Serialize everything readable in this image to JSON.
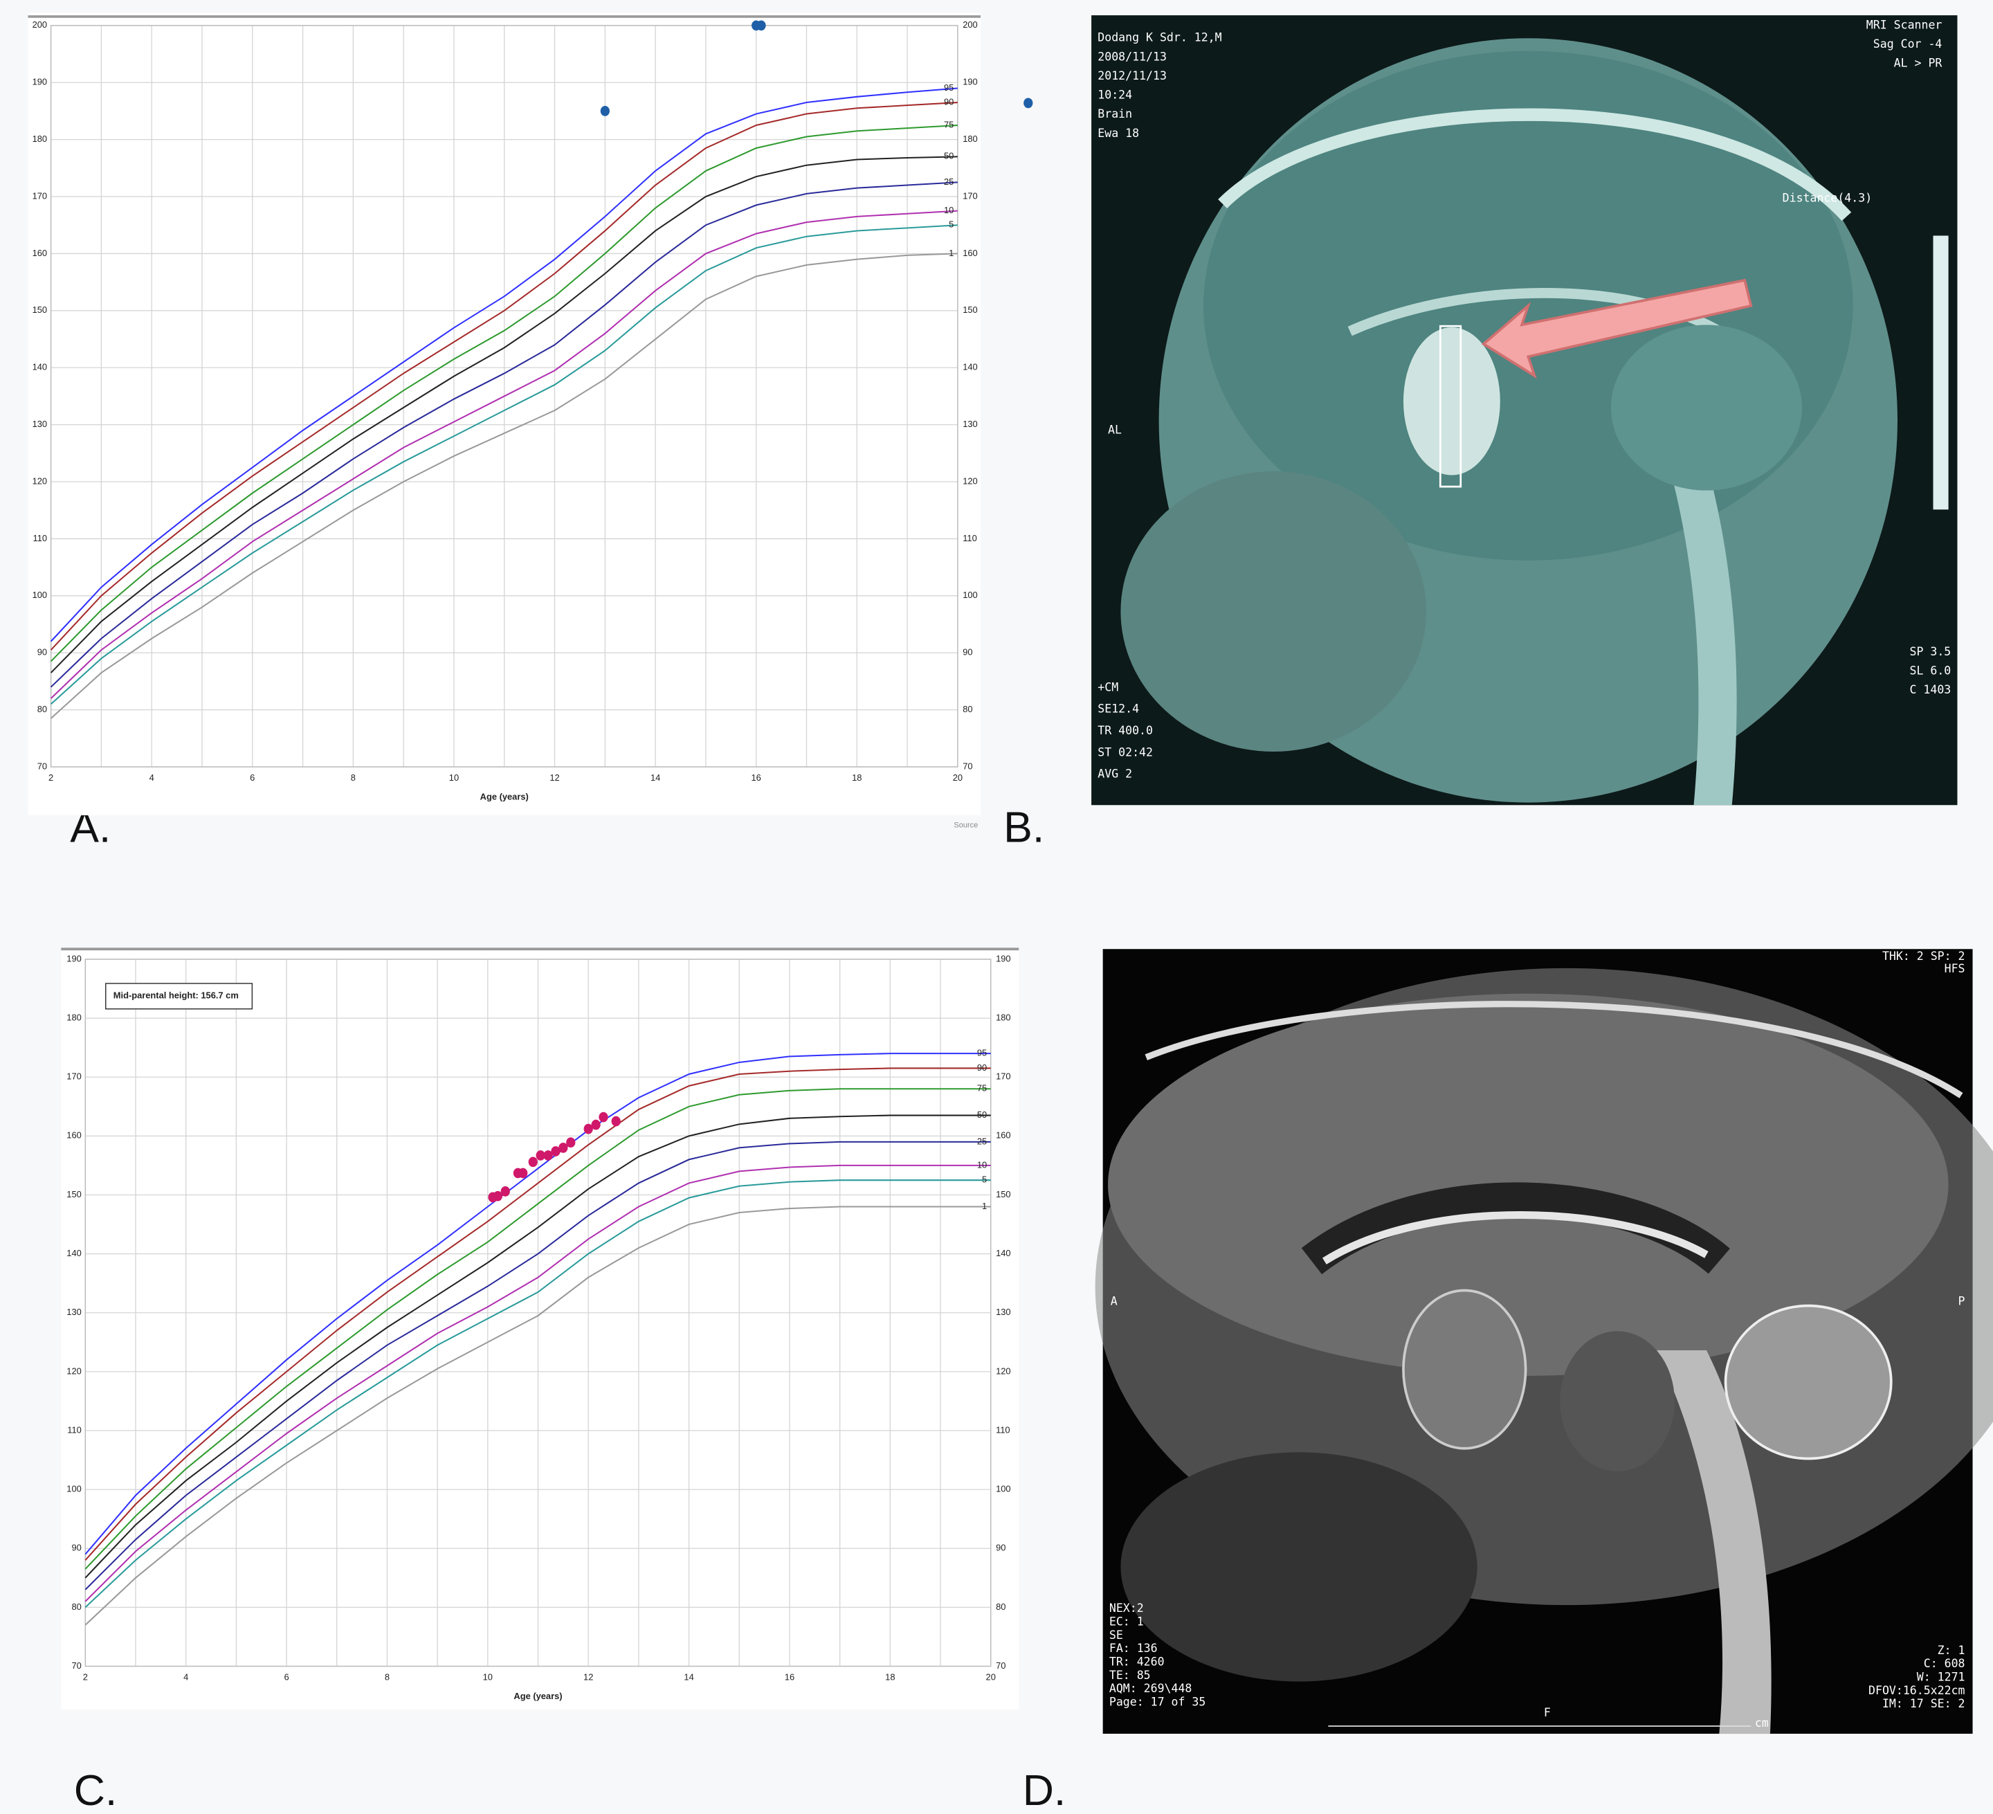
{
  "chart_data": [
    {
      "type": "line",
      "x_label": "Age (years)",
      "source": "Source",
      "xlim": [
        2,
        20
      ],
      "xticks": [
        2,
        4,
        6,
        8,
        10,
        12,
        14,
        16,
        18,
        20
      ],
      "x_minor_ticks": [
        3,
        5,
        7,
        9,
        11,
        13,
        15,
        17,
        19
      ],
      "ylim": [
        70,
        200
      ],
      "yticks": [
        70,
        80,
        90,
        100,
        110,
        120,
        130,
        140,
        150,
        160,
        170,
        180,
        190,
        200
      ],
      "grid": true,
      "x": [
        2,
        3,
        4,
        5,
        6,
        7,
        8,
        9,
        10,
        11,
        12,
        13,
        14,
        15,
        16,
        17,
        18,
        19,
        20
      ],
      "series": [
        {
          "name": "95",
          "color": "#3030ff",
          "values": [
            92,
            101.5,
            109,
            116,
            122.5,
            129,
            135,
            141,
            147,
            152.5,
            159,
            166.5,
            174.5,
            181,
            184.5,
            186.5,
            187.5,
            188.3,
            189
          ]
        },
        {
          "name": "90",
          "color": "#a52a2a",
          "values": [
            90.5,
            100,
            107.5,
            114.5,
            121,
            127,
            133,
            139,
            144.5,
            150,
            156.5,
            164,
            172,
            178.5,
            182.5,
            184.5,
            185.5,
            186,
            186.5
          ]
        },
        {
          "name": "75",
          "color": "#2e9a2e",
          "values": [
            88.5,
            97.5,
            105,
            111.5,
            118,
            124,
            130,
            136,
            141.5,
            146.5,
            152.5,
            160,
            168,
            174.5,
            178.5,
            180.5,
            181.5,
            182,
            182.5
          ]
        },
        {
          "name": "50",
          "color": "#222222",
          "values": [
            86.5,
            95.5,
            102.5,
            109,
            115.5,
            121.5,
            127.5,
            133,
            138.5,
            143.5,
            149.5,
            156.5,
            164,
            170,
            173.5,
            175.5,
            176.5,
            176.8,
            177
          ]
        },
        {
          "name": "25",
          "color": "#2a2a9a",
          "values": [
            84,
            92.5,
            99.5,
            106,
            112.5,
            118,
            124,
            129.5,
            134.5,
            139,
            144,
            151,
            158.5,
            165,
            168.5,
            170.5,
            171.5,
            172,
            172.5
          ]
        },
        {
          "name": "10",
          "color": "#b030b0",
          "values": [
            82,
            90.5,
            97,
            103,
            109.5,
            115,
            120.5,
            126,
            130.5,
            135,
            139.5,
            146,
            153.5,
            160,
            163.5,
            165.5,
            166.5,
            167,
            167.5
          ]
        },
        {
          "name": "5",
          "color": "#2a9a9a",
          "values": [
            81,
            89,
            95.5,
            101.5,
            107.5,
            113,
            118.5,
            123.5,
            128,
            132.5,
            137,
            143,
            150.5,
            157,
            161,
            163,
            164,
            164.5,
            165
          ]
        },
        {
          "name": "1",
          "color": "#999999",
          "values": [
            78.5,
            86.5,
            92.5,
            98,
            104,
            109.5,
            115,
            120,
            124.5,
            128.5,
            132.5,
            138,
            145,
            152,
            156,
            158,
            159,
            159.7,
            160
          ]
        }
      ],
      "markers": {
        "color": "#1f5fa8",
        "x": [
          13,
          16,
          16.1,
          21.4
        ],
        "values": [
          185,
          200,
          200,
          186.4
        ]
      }
    },
    {
      "type": "line",
      "x_label": "Age (years)",
      "annotation": "Mid-parental height: 156.7 cm",
      "xlim": [
        2,
        20
      ],
      "xticks": [
        2,
        4,
        6,
        8,
        10,
        12,
        14,
        16,
        18,
        20
      ],
      "x_minor_ticks": [
        3,
        5,
        7,
        9,
        11,
        13,
        15,
        17,
        19
      ],
      "ylim": [
        70,
        190
      ],
      "yticks": [
        70,
        80,
        90,
        100,
        110,
        120,
        130,
        140,
        150,
        160,
        170,
        180,
        190
      ],
      "grid": true,
      "x": [
        2,
        3,
        4,
        5,
        6,
        7,
        8,
        9,
        10,
        11,
        12,
        13,
        14,
        15,
        16,
        17,
        18,
        19,
        20
      ],
      "series": [
        {
          "name": "95",
          "color": "#3030ff",
          "values": [
            89,
            99,
            107,
            114.5,
            122,
            129,
            135.5,
            141.5,
            148,
            154.5,
            161,
            166.5,
            170.5,
            172.5,
            173.5,
            173.8,
            174,
            174,
            174
          ]
        },
        {
          "name": "90",
          "color": "#a52a2a",
          "values": [
            88,
            97.5,
            105.5,
            113,
            120,
            127,
            133.5,
            139.5,
            145.5,
            152,
            158.5,
            164.5,
            168.5,
            170.5,
            171,
            171.3,
            171.5,
            171.5,
            171.5
          ]
        },
        {
          "name": "75",
          "color": "#2e9a2e",
          "values": [
            86.5,
            95.5,
            103.5,
            110.5,
            117.5,
            124,
            130.5,
            136.5,
            142,
            148.5,
            155,
            161,
            165,
            167,
            167.7,
            168,
            168,
            168,
            168
          ]
        },
        {
          "name": "50",
          "color": "#222222",
          "values": [
            85,
            94,
            101.5,
            108,
            115,
            121.5,
            127.5,
            133,
            138.5,
            144.5,
            151,
            156.5,
            160,
            162,
            163,
            163.3,
            163.5,
            163.5,
            163.5
          ]
        },
        {
          "name": "25",
          "color": "#2a2a9a",
          "values": [
            83,
            91.5,
            99,
            105.5,
            112,
            118.5,
            124.5,
            129.5,
            134.5,
            140,
            146.5,
            152,
            156,
            158,
            158.7,
            159,
            159,
            159,
            159
          ]
        },
        {
          "name": "10",
          "color": "#b030b0",
          "values": [
            81,
            89.5,
            96.5,
            103,
            109.5,
            115.5,
            121,
            126.5,
            131,
            136,
            142.5,
            148,
            152,
            154,
            154.7,
            155,
            155,
            155,
            155
          ]
        },
        {
          "name": "5",
          "color": "#2a9a9a",
          "values": [
            80,
            88,
            95,
            101.5,
            107.5,
            113.5,
            119,
            124.5,
            129,
            133.5,
            140,
            145.5,
            149.5,
            151.5,
            152.2,
            152.5,
            152.5,
            152.5,
            152.5
          ]
        },
        {
          "name": "1",
          "color": "#999999",
          "values": [
            77,
            85,
            92,
            98.5,
            104.5,
            110,
            115.5,
            120.5,
            125,
            129.5,
            136,
            141,
            145,
            147,
            147.7,
            148,
            148,
            148,
            148
          ]
        }
      ],
      "markers": {
        "color": "#d0186a",
        "x": [
          10.1,
          10.2,
          10.35,
          10.6,
          10.7,
          10.9,
          11.05,
          11.2,
          11.35,
          11.5,
          11.65,
          12,
          12.15,
          12.3,
          12.55
        ],
        "values": [
          149.6,
          149.8,
          150.6,
          153.7,
          153.7,
          155.6,
          156.7,
          156.7,
          157.4,
          158,
          158.9,
          161.2,
          161.9,
          163.2,
          162.5
        ]
      }
    }
  ],
  "panel_labels": [
    "A.",
    "B.",
    "C.",
    "D."
  ],
  "mri_b": {
    "left_top": [
      "Dodang K Sdr. 12,M",
      "2008/11/13",
      "2012/11/13",
      "10:24",
      "Brain",
      "Ewa 18"
    ],
    "right_top": [
      "MRI Scanner",
      "Sag Cor -4",
      "AL > PR"
    ],
    "distance": "Distance(4.3)",
    "side": "AL",
    "left_bottom": [
      "+CM",
      "SE12.4",
      "TR 400.0",
      "ST 02:42",
      "AVG 2"
    ],
    "right_bottom": [
      "SP 3.5",
      "SL 6.0",
      "C 1403"
    ]
  },
  "mri_d": {
    "top_right": [
      "THK: 2 SP: 2",
      "HFS"
    ],
    "anterior": "A",
    "posterior": "P",
    "left_bottom": [
      "NEX:2",
      "EC: 1",
      "SE",
      "FA: 136",
      "TR: 4260",
      "TE: 85",
      "AQM: 269\\448",
      "Page: 17 of 35"
    ],
    "right_bottom": [
      "Z: 1",
      "C: 608",
      "W: 1271",
      "DFOV:16.5x22cm",
      "IM: 17 SE: 2"
    ],
    "foot": "F",
    "unit": "cm"
  }
}
